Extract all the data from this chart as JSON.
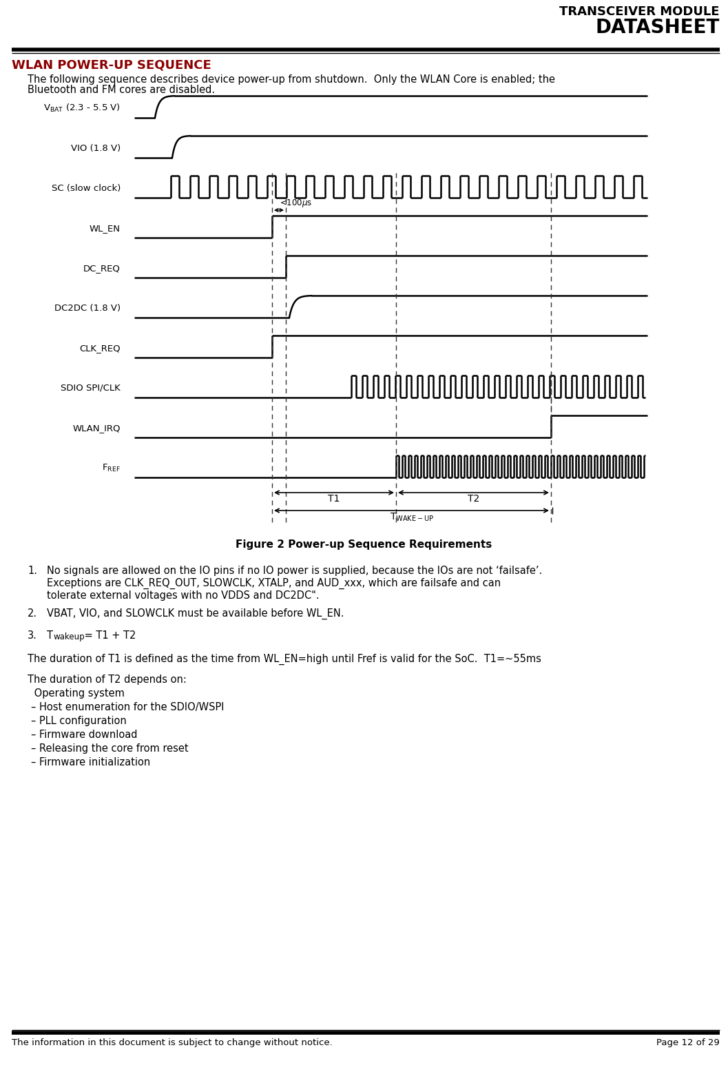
{
  "header_line1": "TRANSCEIVER MODULE",
  "header_line2": "DATASHEET",
  "section_title": "WLAN POWER-UP SEQUENCE",
  "intro_line1": "The following sequence describes device power-up from shutdown.  Only the WLAN Core is enabled; the",
  "intro_line2": "Bluetooth and FM cores are disabled.",
  "figure_caption": "Figure 2 Power-up Sequence Requirements",
  "footer_text": "The information in this document is subject to change without notice.",
  "page_text": "Page 12 of 29",
  "note1": "No signals are allowed on the IO pins if no IO power is supplied, because the IOs are not ‘failsafe’.\nExceptions are CLK_REQ_OUT, SLOWCLK, XTALP, and AUD_xxx, which are failsafe and can\ntolerate external voltages with no VDDS and DC2DC\".",
  "note2": "VBAT, VIO, and SLOWCLK must be available before WL_EN.",
  "note3_T": "T",
  "note3_wakeup": " wakeup",
  "note3_rest": " = T1 + T2",
  "t1_desc": "The duration of T1 is defined as the time from WL_EN=high until Fref is valid for the SoC.  T1=~55ms",
  "t2_intro": "The duration of T2 depends on:",
  "t2_os": " Operating system",
  "t2_lines": [
    "– Host enumeration for the SDIO/WSPI",
    "– PLL configuration",
    "– Firmware download",
    "– Releasing the core from reset",
    "– Firmware initialization"
  ],
  "bg_color": "#ffffff",
  "header_color": "#000000",
  "section_title_color": "#8B0000",
  "signal_color": "#000000"
}
